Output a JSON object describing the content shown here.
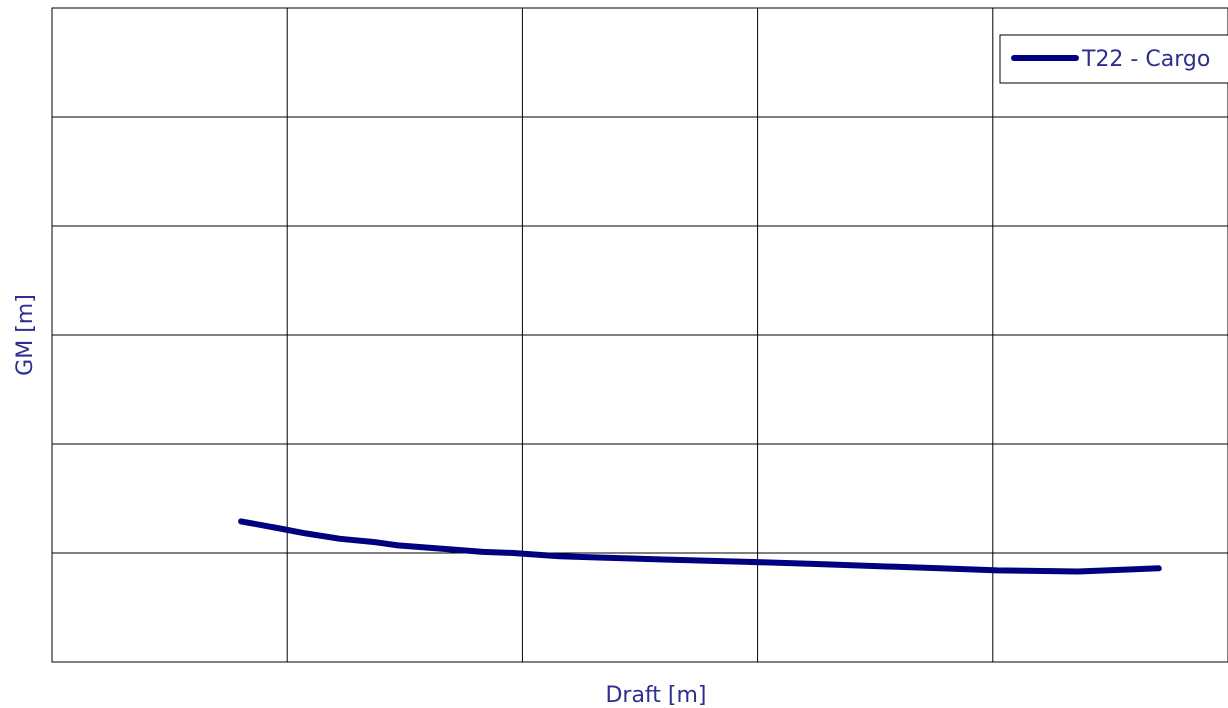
{
  "chart_data": {
    "type": "line",
    "title": "",
    "xlabel": "Draft [m]",
    "ylabel": "GM [m]",
    "xlim": [
      0,
      5.1
    ],
    "ylim": [
      0,
      6
    ],
    "x_gridlines": 5,
    "y_gridlines": 6,
    "grid": true,
    "legend_position": "top-right",
    "colors": {
      "series": "#000080",
      "grid": "#000000",
      "text": "#2e2e8f"
    },
    "series": [
      {
        "name": "T22 - Cargo",
        "color": "#000080",
        "x": [
          0.82,
          1.0,
          1.1,
          1.25,
          1.4,
          1.5,
          1.75,
          1.87,
          2.0,
          2.2,
          2.35,
          2.65,
          3.0,
          3.3,
          3.85,
          4.1,
          4.45,
          4.8
        ],
        "y": [
          1.29,
          1.22,
          1.18,
          1.13,
          1.1,
          1.07,
          1.03,
          1.01,
          1.0,
          0.97,
          0.96,
          0.94,
          0.92,
          0.9,
          0.86,
          0.84,
          0.83,
          0.86
        ]
      }
    ]
  }
}
